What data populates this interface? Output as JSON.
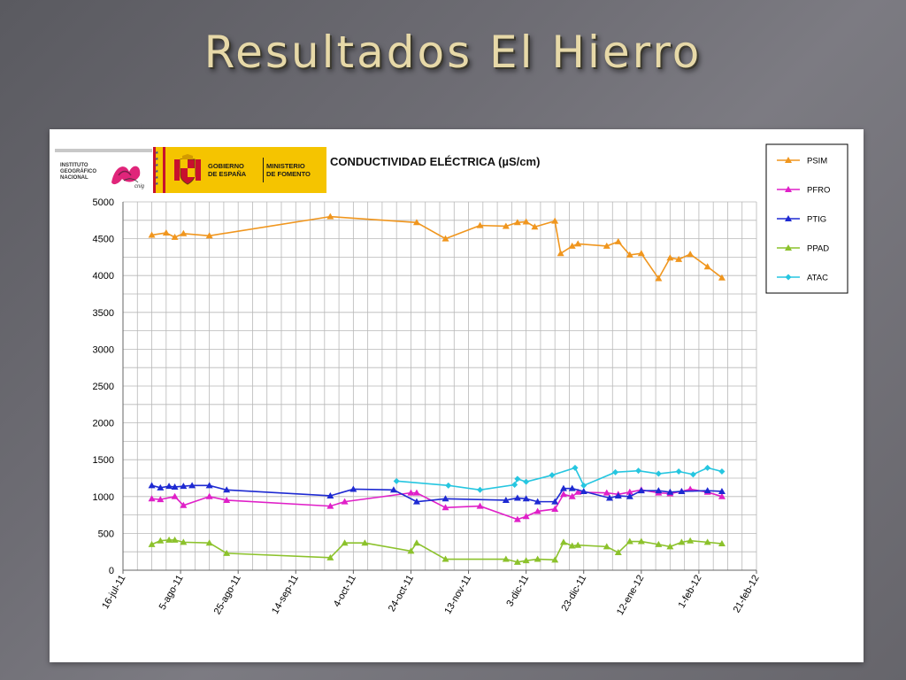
{
  "slide": {
    "title": "Resultados El Hierro"
  },
  "logos": {
    "ign_text": "INSTITUTO\nGEOGRÁFICO\nNACIONAL",
    "ign_tag": "cnig",
    "gov_line1": "GOBIERNO",
    "gov_line2": "DE ESPAÑA",
    "min_line1": "MINISTERIO",
    "min_line2": "DE FOMENTO"
  },
  "chart_data": {
    "type": "line",
    "title": "CONDUCTIVIDAD ELÉCTRICA (µS/cm)",
    "xlabel": "",
    "ylabel": "",
    "ylim": [
      0,
      5000
    ],
    "yticks": [
      0,
      500,
      1000,
      1500,
      2000,
      2500,
      3000,
      3500,
      4000,
      4500,
      5000
    ],
    "xlim": [
      "2011-07-16",
      "2012-02-21"
    ],
    "xticks": [
      "16-jul-11",
      "5-ago-11",
      "25-ago-11",
      "14-sep-11",
      "4-oct-11",
      "24-oct-11",
      "13-nov-11",
      "3-dic-11",
      "23-dic-11",
      "12-ene-12",
      "1-feb-12",
      "21-feb-12"
    ],
    "grid": true,
    "legend_position": "right",
    "series": [
      {
        "name": "PSIM",
        "color": "#f0961e",
        "marker": "triangle",
        "points": [
          [
            "2011-07-26",
            4550
          ],
          [
            "2011-07-31",
            4580
          ],
          [
            "2011-08-03",
            4520
          ],
          [
            "2011-08-06",
            4570
          ],
          [
            "2011-08-15",
            4540
          ],
          [
            "2011-09-26",
            4800
          ],
          [
            "2011-10-26",
            4720
          ],
          [
            "2011-11-05",
            4500
          ],
          [
            "2011-11-17",
            4680
          ],
          [
            "2011-11-26",
            4670
          ],
          [
            "2011-11-30",
            4720
          ],
          [
            "2011-12-03",
            4730
          ],
          [
            "2011-12-06",
            4660
          ],
          [
            "2011-12-13",
            4740
          ],
          [
            "2011-12-15",
            4300
          ],
          [
            "2011-12-19",
            4400
          ],
          [
            "2011-12-21",
            4430
          ],
          [
            "2011-12-31",
            4400
          ],
          [
            "2012-01-04",
            4460
          ],
          [
            "2012-01-08",
            4280
          ],
          [
            "2012-01-12",
            4300
          ],
          [
            "2012-01-18",
            3960
          ],
          [
            "2012-01-22",
            4240
          ],
          [
            "2012-01-25",
            4220
          ],
          [
            "2012-01-29",
            4290
          ],
          [
            "2012-02-04",
            4120
          ],
          [
            "2012-02-09",
            3970
          ]
        ]
      },
      {
        "name": "PFRO",
        "color": "#e020c8",
        "marker": "triangle",
        "points": [
          [
            "2011-07-26",
            970
          ],
          [
            "2011-07-29",
            960
          ],
          [
            "2011-08-03",
            1000
          ],
          [
            "2011-08-06",
            880
          ],
          [
            "2011-08-15",
            1000
          ],
          [
            "2011-08-21",
            950
          ],
          [
            "2011-09-26",
            870
          ],
          [
            "2011-10-01",
            930
          ],
          [
            "2011-10-24",
            1050
          ],
          [
            "2011-10-26",
            1050
          ],
          [
            "2011-11-05",
            850
          ],
          [
            "2011-11-17",
            870
          ],
          [
            "2011-11-30",
            690
          ],
          [
            "2011-12-03",
            730
          ],
          [
            "2011-12-07",
            800
          ],
          [
            "2011-12-13",
            830
          ],
          [
            "2011-12-16",
            1030
          ],
          [
            "2011-12-19",
            1000
          ],
          [
            "2011-12-21",
            1060
          ],
          [
            "2011-12-31",
            1050
          ],
          [
            "2012-01-04",
            1030
          ],
          [
            "2012-01-08",
            1060
          ],
          [
            "2012-01-12",
            1090
          ],
          [
            "2012-01-18",
            1050
          ],
          [
            "2012-01-22",
            1040
          ],
          [
            "2012-01-26",
            1070
          ],
          [
            "2012-01-29",
            1100
          ],
          [
            "2012-02-04",
            1060
          ],
          [
            "2012-02-09",
            1000
          ]
        ]
      },
      {
        "name": "PTIG",
        "color": "#1e2ad2",
        "marker": "triangle",
        "points": [
          [
            "2011-07-26",
            1150
          ],
          [
            "2011-07-29",
            1120
          ],
          [
            "2011-08-01",
            1140
          ],
          [
            "2011-08-03",
            1130
          ],
          [
            "2011-08-06",
            1140
          ],
          [
            "2011-08-09",
            1150
          ],
          [
            "2011-08-15",
            1150
          ],
          [
            "2011-08-21",
            1090
          ],
          [
            "2011-09-26",
            1010
          ],
          [
            "2011-10-04",
            1100
          ],
          [
            "2011-10-18",
            1090
          ],
          [
            "2011-10-26",
            930
          ],
          [
            "2011-11-05",
            970
          ],
          [
            "2011-11-26",
            950
          ],
          [
            "2011-11-30",
            980
          ],
          [
            "2011-12-03",
            970
          ],
          [
            "2011-12-07",
            930
          ],
          [
            "2011-12-13",
            930
          ],
          [
            "2011-12-16",
            1110
          ],
          [
            "2011-12-19",
            1110
          ],
          [
            "2011-12-23",
            1070
          ],
          [
            "2012-01-01",
            980
          ],
          [
            "2012-01-04",
            1010
          ],
          [
            "2012-01-08",
            1000
          ],
          [
            "2012-01-12",
            1080
          ],
          [
            "2012-01-18",
            1080
          ],
          [
            "2012-01-22",
            1060
          ],
          [
            "2012-01-26",
            1070
          ],
          [
            "2012-02-04",
            1080
          ],
          [
            "2012-02-09",
            1070
          ]
        ]
      },
      {
        "name": "PPAD",
        "color": "#8cc22c",
        "marker": "triangle",
        "points": [
          [
            "2011-07-26",
            350
          ],
          [
            "2011-07-29",
            400
          ],
          [
            "2011-08-01",
            410
          ],
          [
            "2011-08-03",
            410
          ],
          [
            "2011-08-06",
            380
          ],
          [
            "2011-08-15",
            370
          ],
          [
            "2011-08-21",
            230
          ],
          [
            "2011-09-26",
            170
          ],
          [
            "2011-10-01",
            370
          ],
          [
            "2011-10-08",
            370
          ],
          [
            "2011-10-24",
            260
          ],
          [
            "2011-10-26",
            370
          ],
          [
            "2011-11-05",
            150
          ],
          [
            "2011-11-26",
            150
          ],
          [
            "2011-11-30",
            110
          ],
          [
            "2011-12-03",
            130
          ],
          [
            "2011-12-07",
            150
          ],
          [
            "2011-12-13",
            140
          ],
          [
            "2011-12-16",
            380
          ],
          [
            "2011-12-19",
            330
          ],
          [
            "2011-12-21",
            340
          ],
          [
            "2011-12-31",
            320
          ],
          [
            "2012-01-04",
            240
          ],
          [
            "2012-01-08",
            390
          ],
          [
            "2012-01-12",
            390
          ],
          [
            "2012-01-18",
            350
          ],
          [
            "2012-01-22",
            320
          ],
          [
            "2012-01-26",
            380
          ],
          [
            "2012-01-29",
            400
          ],
          [
            "2012-02-04",
            380
          ],
          [
            "2012-02-09",
            360
          ]
        ]
      },
      {
        "name": "ATAC",
        "color": "#26c6e0",
        "marker": "diamond",
        "points": [
          [
            "2011-10-19",
            1210
          ],
          [
            "2011-11-06",
            1150
          ],
          [
            "2011-11-17",
            1090
          ],
          [
            "2011-11-29",
            1160
          ],
          [
            "2011-11-30",
            1240
          ],
          [
            "2011-12-03",
            1200
          ],
          [
            "2011-12-12",
            1290
          ],
          [
            "2011-12-20",
            1390
          ],
          [
            "2011-12-23",
            1150
          ],
          [
            "2012-01-03",
            1330
          ],
          [
            "2012-01-11",
            1350
          ],
          [
            "2012-01-18",
            1310
          ],
          [
            "2012-01-25",
            1340
          ],
          [
            "2012-01-30",
            1300
          ],
          [
            "2012-02-04",
            1390
          ],
          [
            "2012-02-09",
            1340
          ]
        ]
      }
    ]
  }
}
